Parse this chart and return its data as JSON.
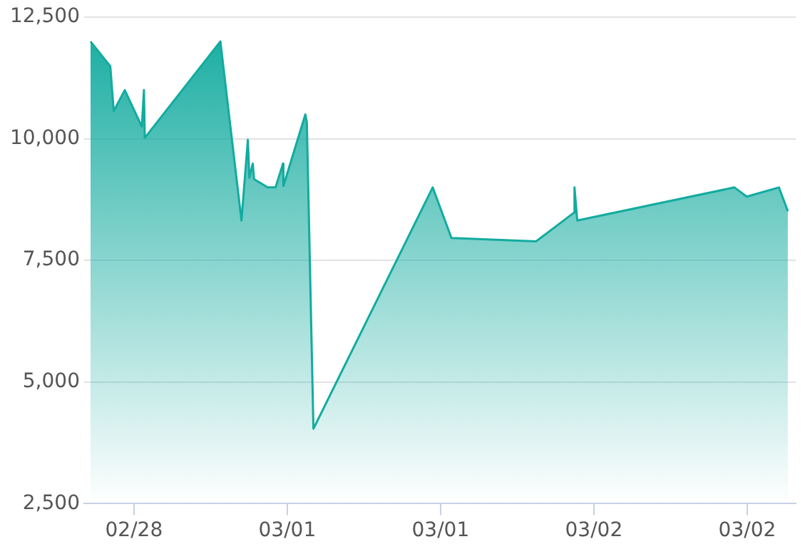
{
  "chart_data": {
    "type": "area",
    "x": [
      "--02-28T08:36",
      "--02-28T10:09",
      "--02-28T10:25",
      "--02-28T11:17",
      "--02-28T12:37",
      "--02-28T12:47",
      "--02-28T12:51",
      "--02-28T13:02",
      "--02-28T18:46",
      "--02-28T20:25",
      "--02-28T20:55",
      "--02-28T21:02",
      "--02-28T21:18",
      "--02-28T21:24",
      "--02-28T22:28",
      "--02-28T23:05",
      "--02-28T23:40",
      "--02-28T23:42",
      "--03-01T01:25",
      "--03-01T01:32",
      "--03-01T02:03",
      "--03-01T11:23",
      "--03-01T12:51",
      "--03-01T19:28",
      "--03-01T22:26",
      "--03-01T22:29",
      "--03-01T22:42",
      "--03-02T11:00",
      "--03-02T11:58",
      "--03-02T14:29",
      "--03-02T15:11"
    ],
    "series": [
      {
        "color": "#13ab9f",
        "values": [
          12000,
          11490,
          10570,
          11000,
          10250,
          11000,
          10020,
          10080,
          12000,
          8320,
          9980,
          9200,
          9490,
          9170,
          9000,
          9000,
          9490,
          9030,
          10500,
          10340,
          4040,
          9000,
          7960,
          7890,
          8480,
          9000,
          8320,
          9000,
          8810,
          9000,
          8510
        ]
      }
    ],
    "xlim": [
      "--02-28T08:06",
      "--03-02T15:48"
    ],
    "xticks": [
      {
        "value": "--02-28T12:00",
        "label": "02/28"
      },
      {
        "value": "--03-01T00:00",
        "label": "03/01"
      },
      {
        "value": "--03-01T12:00",
        "label": "03/01"
      },
      {
        "value": "--03-02T00:00",
        "label": "03/02"
      },
      {
        "value": "--03-02T12:00",
        "label": "03/02"
      }
    ],
    "ylim": [
      2500,
      12500
    ],
    "yticks": [
      {
        "value": 2500,
        "label": "2,500"
      },
      {
        "value": 5000,
        "label": "5,000"
      },
      {
        "value": 7500,
        "label": "7,500"
      },
      {
        "value": 10000,
        "label": "10,000"
      },
      {
        "value": 12500,
        "label": "12,500"
      }
    ],
    "grid": "y",
    "legend": false
  }
}
